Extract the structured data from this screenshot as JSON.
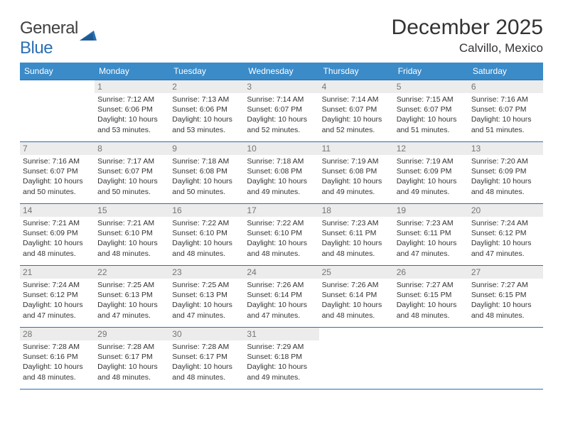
{
  "logo": {
    "word1": "General",
    "word2": "Blue"
  },
  "title": "December 2025",
  "subtitle": "Calvillo, Mexico",
  "colors": {
    "header_bg": "#3b8bc8",
    "header_fg": "#ffffff",
    "border": "#2a6fb5",
    "daynum_bg": "#ececec",
    "daynum_fg": "#757575",
    "text": "#333333",
    "logo_gray": "#5a5a5a",
    "logo_blue": "#2a6fb5"
  },
  "day_labels": [
    "Sunday",
    "Monday",
    "Tuesday",
    "Wednesday",
    "Thursday",
    "Friday",
    "Saturday"
  ],
  "weeks": [
    [
      null,
      {
        "n": "1",
        "sr": "7:12 AM",
        "ss": "6:06 PM",
        "dl": "10 hours and 53 minutes."
      },
      {
        "n": "2",
        "sr": "7:13 AM",
        "ss": "6:06 PM",
        "dl": "10 hours and 53 minutes."
      },
      {
        "n": "3",
        "sr": "7:14 AM",
        "ss": "6:07 PM",
        "dl": "10 hours and 52 minutes."
      },
      {
        "n": "4",
        "sr": "7:14 AM",
        "ss": "6:07 PM",
        "dl": "10 hours and 52 minutes."
      },
      {
        "n": "5",
        "sr": "7:15 AM",
        "ss": "6:07 PM",
        "dl": "10 hours and 51 minutes."
      },
      {
        "n": "6",
        "sr": "7:16 AM",
        "ss": "6:07 PM",
        "dl": "10 hours and 51 minutes."
      }
    ],
    [
      {
        "n": "7",
        "sr": "7:16 AM",
        "ss": "6:07 PM",
        "dl": "10 hours and 50 minutes."
      },
      {
        "n": "8",
        "sr": "7:17 AM",
        "ss": "6:07 PM",
        "dl": "10 hours and 50 minutes."
      },
      {
        "n": "9",
        "sr": "7:18 AM",
        "ss": "6:08 PM",
        "dl": "10 hours and 50 minutes."
      },
      {
        "n": "10",
        "sr": "7:18 AM",
        "ss": "6:08 PM",
        "dl": "10 hours and 49 minutes."
      },
      {
        "n": "11",
        "sr": "7:19 AM",
        "ss": "6:08 PM",
        "dl": "10 hours and 49 minutes."
      },
      {
        "n": "12",
        "sr": "7:19 AM",
        "ss": "6:09 PM",
        "dl": "10 hours and 49 minutes."
      },
      {
        "n": "13",
        "sr": "7:20 AM",
        "ss": "6:09 PM",
        "dl": "10 hours and 48 minutes."
      }
    ],
    [
      {
        "n": "14",
        "sr": "7:21 AM",
        "ss": "6:09 PM",
        "dl": "10 hours and 48 minutes."
      },
      {
        "n": "15",
        "sr": "7:21 AM",
        "ss": "6:10 PM",
        "dl": "10 hours and 48 minutes."
      },
      {
        "n": "16",
        "sr": "7:22 AM",
        "ss": "6:10 PM",
        "dl": "10 hours and 48 minutes."
      },
      {
        "n": "17",
        "sr": "7:22 AM",
        "ss": "6:10 PM",
        "dl": "10 hours and 48 minutes."
      },
      {
        "n": "18",
        "sr": "7:23 AM",
        "ss": "6:11 PM",
        "dl": "10 hours and 48 minutes."
      },
      {
        "n": "19",
        "sr": "7:23 AM",
        "ss": "6:11 PM",
        "dl": "10 hours and 47 minutes."
      },
      {
        "n": "20",
        "sr": "7:24 AM",
        "ss": "6:12 PM",
        "dl": "10 hours and 47 minutes."
      }
    ],
    [
      {
        "n": "21",
        "sr": "7:24 AM",
        "ss": "6:12 PM",
        "dl": "10 hours and 47 minutes."
      },
      {
        "n": "22",
        "sr": "7:25 AM",
        "ss": "6:13 PM",
        "dl": "10 hours and 47 minutes."
      },
      {
        "n": "23",
        "sr": "7:25 AM",
        "ss": "6:13 PM",
        "dl": "10 hours and 47 minutes."
      },
      {
        "n": "24",
        "sr": "7:26 AM",
        "ss": "6:14 PM",
        "dl": "10 hours and 47 minutes."
      },
      {
        "n": "25",
        "sr": "7:26 AM",
        "ss": "6:14 PM",
        "dl": "10 hours and 48 minutes."
      },
      {
        "n": "26",
        "sr": "7:27 AM",
        "ss": "6:15 PM",
        "dl": "10 hours and 48 minutes."
      },
      {
        "n": "27",
        "sr": "7:27 AM",
        "ss": "6:15 PM",
        "dl": "10 hours and 48 minutes."
      }
    ],
    [
      {
        "n": "28",
        "sr": "7:28 AM",
        "ss": "6:16 PM",
        "dl": "10 hours and 48 minutes."
      },
      {
        "n": "29",
        "sr": "7:28 AM",
        "ss": "6:17 PM",
        "dl": "10 hours and 48 minutes."
      },
      {
        "n": "30",
        "sr": "7:28 AM",
        "ss": "6:17 PM",
        "dl": "10 hours and 48 minutes."
      },
      {
        "n": "31",
        "sr": "7:29 AM",
        "ss": "6:18 PM",
        "dl": "10 hours and 49 minutes."
      },
      null,
      null,
      null
    ]
  ],
  "labels": {
    "sunrise": "Sunrise:",
    "sunset": "Sunset:",
    "daylight": "Daylight:"
  }
}
